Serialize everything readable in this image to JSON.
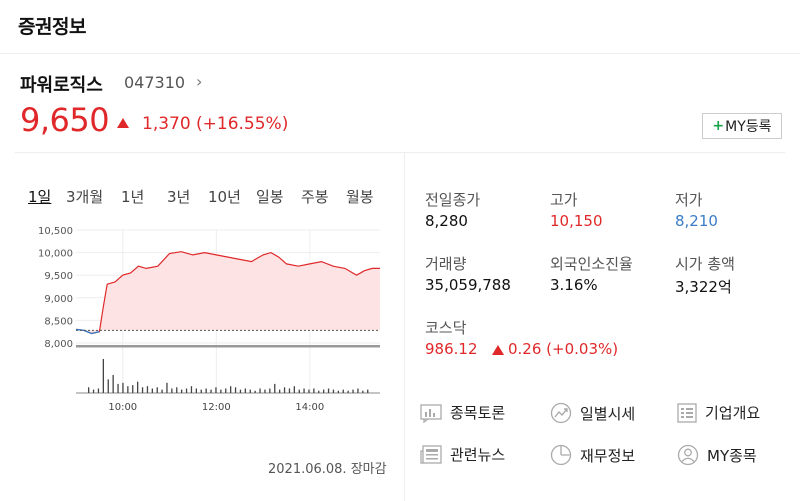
{
  "header": {
    "title": "증권정보"
  },
  "stock": {
    "name": "파워로직스",
    "code": "047310",
    "chevron": "›",
    "price": "9,650",
    "change": "1,370",
    "change_pct": "(+16.55%)",
    "direction": "up"
  },
  "my_button": {
    "plus": "+",
    "label": "MY등록"
  },
  "range_tabs": [
    "1일",
    "3개월",
    "1년",
    "3년",
    "10년",
    "일봉",
    "주봉",
    "월봉"
  ],
  "active_tab": "1일",
  "chart_data": {
    "type": "line",
    "ylim": [
      8000,
      10500
    ],
    "y_ticks": [
      "10,500",
      "10,000",
      "9,500",
      "9,000",
      "8,500",
      "8,000"
    ],
    "x_ticks": [
      "10:00",
      "12:00",
      "14:00"
    ],
    "previous_close": 8280,
    "series": [
      {
        "x": [
          "09:00",
          "09:10",
          "09:20",
          "09:30",
          "09:35",
          "09:40",
          "09:50",
          "10:00",
          "10:10",
          "10:20",
          "10:30",
          "10:45",
          "11:00",
          "11:15",
          "11:30",
          "11:45",
          "12:00",
          "12:15",
          "12:30",
          "12:45",
          "13:00",
          "13:10",
          "13:20",
          "13:30",
          "13:45",
          "14:00",
          "14:15",
          "14:30",
          "14:45",
          "15:00",
          "15:10",
          "15:20",
          "15:30"
        ],
        "values": [
          8300,
          8280,
          8210,
          8250,
          8800,
          9300,
          9350,
          9500,
          9550,
          9700,
          9650,
          9700,
          9980,
          10020,
          9950,
          10000,
          9950,
          9900,
          9850,
          9800,
          9950,
          10000,
          9900,
          9750,
          9700,
          9750,
          9800,
          9700,
          9650,
          9500,
          9600,
          9650,
          9650
        ]
      }
    ],
    "volume": [
      5,
      3,
      4,
      30,
      12,
      16,
      8,
      9,
      6,
      7,
      10,
      5,
      6,
      4,
      5,
      3,
      9,
      4,
      5,
      3,
      4,
      6,
      4,
      3,
      4,
      3,
      5,
      3,
      4,
      6,
      5,
      3,
      4,
      3,
      2,
      4,
      3,
      4,
      8,
      3,
      5,
      4,
      6,
      3,
      4,
      3,
      4,
      2,
      3,
      4,
      3,
      2,
      3,
      2,
      3,
      4,
      2,
      3
    ]
  },
  "chart_date": "2021.06.08. 장마감",
  "info": {
    "prev_close_label": "전일종가",
    "prev_close": "8,280",
    "high_label": "고가",
    "high": "10,150",
    "low_label": "저가",
    "low": "8,210",
    "volume_label": "거래량",
    "volume": "35,059,788",
    "foreign_label": "외국인소진율",
    "foreign": "3.16%",
    "mcap_label": "시가 총액",
    "mcap": "3,322억",
    "index_label": "코스닥",
    "index_value": "986.12",
    "index_change": "0.26 (+0.03%)"
  },
  "links": [
    {
      "label": "종목토론",
      "icon": "discussion-icon"
    },
    {
      "label": "일별시세",
      "icon": "daily-price-icon"
    },
    {
      "label": "기업개요",
      "icon": "company-overview-icon"
    },
    {
      "label": "관련뉴스",
      "icon": "news-icon"
    },
    {
      "label": "재무정보",
      "icon": "financial-icon"
    },
    {
      "label": "MY종목",
      "icon": "my-stock-icon"
    }
  ],
  "colors": {
    "up": "#e0282a",
    "down": "#3a7cc6",
    "area": "#fde3e3",
    "accent_green": "#1aa34a"
  }
}
